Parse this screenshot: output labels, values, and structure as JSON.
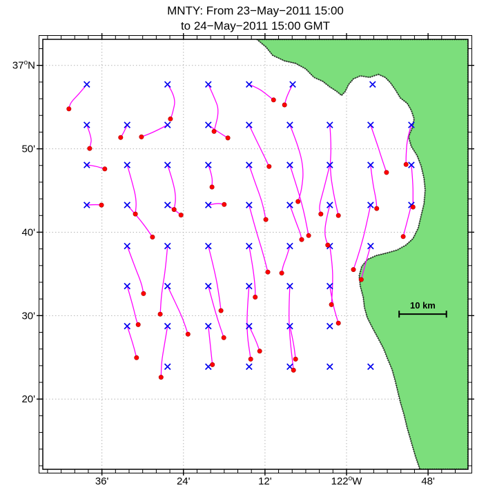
{
  "chart_data": {
    "type": "line",
    "subtype": "lagrangian-trajectory-map",
    "title_line1": "MNTY: From 23−May−2011 15:00",
    "title_line2": "to 24−May−2011 15:00 GMT",
    "axes": {
      "lon_range": [
        -122.745,
        -121.702
      ],
      "lat_range": [
        36.193,
        37.052
      ],
      "x_ticks": [
        {
          "label": "36'",
          "lon": -122.6
        },
        {
          "label": "24'",
          "lon": -122.4
        },
        {
          "label": "12'",
          "lon": -122.2
        },
        {
          "label": "122°W",
          "lon": -122.0
        },
        {
          "label": "48'",
          "lon": -121.8
        }
      ],
      "y_ticks": [
        {
          "label": "37°N",
          "lat": 37.0
        },
        {
          "label": "50'",
          "lat": 36.8333
        },
        {
          "label": "40'",
          "lat": 36.6667
        },
        {
          "label": "30'",
          "lat": 36.5
        },
        {
          "label": "20'",
          "lat": 36.3333
        }
      ],
      "grid": "dotted"
    },
    "scale_bar": {
      "label": "10 km",
      "lon_start": -121.871,
      "lon_end": -121.755,
      "lat": 36.503
    },
    "colors": {
      "land": "#7CDE7C",
      "coast": "#224422",
      "coast_edge": "#222222",
      "grid": "#b3b3b3",
      "trajectory": "#FF00FF",
      "marker": "#0000EE",
      "endpoint": "#FF0000",
      "endpoint_edge": "#AA0000",
      "frame": "#000000"
    },
    "grid_markers": [
      [
        -122.637,
        36.962
      ],
      [
        -122.439,
        36.962
      ],
      [
        -122.339,
        36.962
      ],
      [
        -122.239,
        36.962
      ],
      [
        -122.132,
        36.962
      ],
      [
        -121.936,
        36.962
      ],
      [
        -122.637,
        36.881
      ],
      [
        -122.538,
        36.881
      ],
      [
        -122.439,
        36.881
      ],
      [
        -122.339,
        36.881
      ],
      [
        -122.239,
        36.881
      ],
      [
        -122.139,
        36.881
      ],
      [
        -122.041,
        36.881
      ],
      [
        -121.941,
        36.881
      ],
      [
        -121.841,
        36.881
      ],
      [
        -122.637,
        36.801
      ],
      [
        -122.538,
        36.801
      ],
      [
        -122.439,
        36.801
      ],
      [
        -122.339,
        36.801
      ],
      [
        -122.239,
        36.801
      ],
      [
        -122.139,
        36.801
      ],
      [
        -122.041,
        36.801
      ],
      [
        -121.941,
        36.801
      ],
      [
        -121.841,
        36.801
      ],
      [
        -122.637,
        36.721
      ],
      [
        -122.538,
        36.721
      ],
      [
        -122.439,
        36.721
      ],
      [
        -122.339,
        36.721
      ],
      [
        -122.239,
        36.721
      ],
      [
        -122.139,
        36.721
      ],
      [
        -122.041,
        36.721
      ],
      [
        -121.941,
        36.721
      ],
      [
        -121.841,
        36.721
      ],
      [
        -122.538,
        36.639
      ],
      [
        -122.439,
        36.639
      ],
      [
        -122.339,
        36.639
      ],
      [
        -122.239,
        36.639
      ],
      [
        -122.139,
        36.639
      ],
      [
        -122.041,
        36.639
      ],
      [
        -121.941,
        36.639
      ],
      [
        -122.538,
        36.559
      ],
      [
        -122.439,
        36.559
      ],
      [
        -122.339,
        36.559
      ],
      [
        -122.239,
        36.559
      ],
      [
        -122.139,
        36.559
      ],
      [
        -122.041,
        36.559
      ],
      [
        -122.538,
        36.479
      ],
      [
        -122.439,
        36.479
      ],
      [
        -122.339,
        36.479
      ],
      [
        -122.239,
        36.479
      ],
      [
        -122.139,
        36.479
      ],
      [
        -122.041,
        36.479
      ],
      [
        -122.439,
        36.398
      ],
      [
        -122.339,
        36.398
      ],
      [
        -122.239,
        36.398
      ],
      [
        -122.139,
        36.398
      ],
      [
        -122.041,
        36.398
      ],
      [
        -121.941,
        36.398
      ]
    ],
    "trajectories": [
      [
        [
          -122.637,
          36.962
        ],
        [
          -122.655,
          36.944
        ],
        [
          -122.677,
          36.926
        ],
        [
          -122.681,
          36.913
        ]
      ],
      [
        [
          -122.439,
          36.962
        ],
        [
          -122.418,
          36.937
        ],
        [
          -122.427,
          36.903
        ],
        [
          -122.432,
          36.893
        ]
      ],
      [
        [
          -122.339,
          36.962
        ],
        [
          -122.325,
          36.937
        ],
        [
          -122.312,
          36.91
        ],
        [
          -122.325,
          36.868
        ]
      ],
      [
        [
          -122.239,
          36.962
        ],
        [
          -122.215,
          36.954
        ],
        [
          -122.193,
          36.94
        ],
        [
          -122.179,
          36.931
        ]
      ],
      [
        [
          -122.132,
          36.962
        ],
        [
          -122.146,
          36.94
        ],
        [
          -122.152,
          36.921
        ]
      ],
      [
        [
          -122.637,
          36.881
        ],
        [
          -122.625,
          36.855
        ],
        [
          -122.628,
          36.841
        ],
        [
          -122.63,
          36.834
        ]
      ],
      [
        [
          -122.538,
          36.881
        ],
        [
          -122.545,
          36.868
        ],
        [
          -122.554,
          36.856
        ]
      ],
      [
        [
          -122.439,
          36.881
        ],
        [
          -122.469,
          36.868
        ],
        [
          -122.503,
          36.857
        ]
      ],
      [
        [
          -122.339,
          36.881
        ],
        [
          -122.317,
          36.868
        ],
        [
          -122.291,
          36.855
        ]
      ],
      [
        [
          -122.239,
          36.881
        ],
        [
          -122.224,
          36.855
        ],
        [
          -122.207,
          36.827
        ],
        [
          -122.19,
          36.798
        ]
      ],
      [
        [
          -122.139,
          36.881
        ],
        [
          -122.119,
          36.841
        ],
        [
          -122.105,
          36.793
        ],
        [
          -122.11,
          36.751
        ],
        [
          -122.119,
          36.728
        ]
      ],
      [
        [
          -122.041,
          36.881
        ],
        [
          -122.037,
          36.841
        ],
        [
          -122.041,
          36.793
        ],
        [
          -122.032,
          36.744
        ],
        [
          -122.02,
          36.7
        ]
      ],
      [
        [
          -121.941,
          36.881
        ],
        [
          -121.927,
          36.848
        ],
        [
          -121.916,
          36.82
        ],
        [
          -121.902,
          36.786
        ]
      ],
      [
        [
          -121.841,
          36.881
        ],
        [
          -121.851,
          36.855
        ],
        [
          -121.854,
          36.82
        ],
        [
          -121.854,
          36.802
        ]
      ],
      [
        [
          -122.637,
          36.801
        ],
        [
          -122.616,
          36.799
        ],
        [
          -122.593,
          36.793
        ]
      ],
      [
        [
          -122.538,
          36.801
        ],
        [
          -122.525,
          36.765
        ],
        [
          -122.515,
          36.73
        ],
        [
          -122.518,
          36.703
        ]
      ],
      [
        [
          -122.439,
          36.801
        ],
        [
          -122.427,
          36.772
        ],
        [
          -122.418,
          36.737
        ],
        [
          -122.423,
          36.712
        ]
      ],
      [
        [
          -122.339,
          36.801
        ],
        [
          -122.329,
          36.779
        ],
        [
          -122.33,
          36.757
        ]
      ],
      [
        [
          -122.239,
          36.801
        ],
        [
          -122.224,
          36.765
        ],
        [
          -122.207,
          36.728
        ],
        [
          -122.198,
          36.692
        ]
      ],
      [
        [
          -122.139,
          36.801
        ],
        [
          -122.122,
          36.758
        ],
        [
          -122.105,
          36.71
        ],
        [
          -122.093,
          36.66
        ]
      ],
      [
        [
          -122.041,
          36.801
        ],
        [
          -122.054,
          36.758
        ],
        [
          -122.068,
          36.717
        ],
        [
          -122.063,
          36.703
        ]
      ],
      [
        [
          -121.941,
          36.801
        ],
        [
          -121.936,
          36.765
        ],
        [
          -121.927,
          36.73
        ],
        [
          -121.926,
          36.714
        ]
      ],
      [
        [
          -121.841,
          36.801
        ],
        [
          -121.837,
          36.765
        ],
        [
          -121.837,
          36.73
        ],
        [
          -121.837,
          36.717
        ]
      ],
      [
        [
          -122.637,
          36.721
        ],
        [
          -122.616,
          36.722
        ],
        [
          -122.601,
          36.721
        ]
      ],
      [
        [
          -122.538,
          36.721
        ],
        [
          -122.511,
          36.696
        ],
        [
          -122.491,
          36.675
        ],
        [
          -122.476,
          36.657
        ]
      ],
      [
        [
          -122.439,
          36.721
        ],
        [
          -122.42,
          36.71
        ],
        [
          -122.406,
          36.701
        ]
      ],
      [
        [
          -122.339,
          36.721
        ],
        [
          -122.317,
          36.725
        ],
        [
          -122.3,
          36.722
        ]
      ],
      [
        [
          -122.239,
          36.721
        ],
        [
          -122.224,
          36.675
        ],
        [
          -122.207,
          36.631
        ],
        [
          -122.193,
          36.587
        ]
      ],
      [
        [
          -122.139,
          36.721
        ],
        [
          -122.125,
          36.689
        ],
        [
          -122.113,
          36.664
        ],
        [
          -122.11,
          36.652
        ]
      ],
      [
        [
          -122.041,
          36.721
        ],
        [
          -122.051,
          36.689
        ],
        [
          -122.054,
          36.661
        ],
        [
          -122.046,
          36.641
        ]
      ],
      [
        [
          -121.941,
          36.721
        ],
        [
          -121.953,
          36.675
        ],
        [
          -121.966,
          36.634
        ],
        [
          -121.983,
          36.592
        ]
      ],
      [
        [
          -121.841,
          36.721
        ],
        [
          -121.851,
          36.689
        ],
        [
          -121.861,
          36.658
        ]
      ],
      [
        [
          -122.538,
          36.639
        ],
        [
          -122.52,
          36.599
        ],
        [
          -122.503,
          36.565
        ],
        [
          -122.498,
          36.544
        ]
      ],
      [
        [
          -122.439,
          36.639
        ],
        [
          -122.444,
          36.592
        ],
        [
          -122.454,
          36.544
        ],
        [
          -122.457,
          36.503
        ]
      ],
      [
        [
          -122.339,
          36.639
        ],
        [
          -122.322,
          36.585
        ],
        [
          -122.312,
          36.537
        ],
        [
          -122.308,
          36.51
        ]
      ],
      [
        [
          -122.239,
          36.639
        ],
        [
          -122.23,
          36.599
        ],
        [
          -122.224,
          36.558
        ],
        [
          -122.224,
          36.537
        ]
      ],
      [
        [
          -122.139,
          36.639
        ],
        [
          -122.147,
          36.617
        ],
        [
          -122.156,
          36.599
        ],
        [
          -122.159,
          36.585
        ]
      ],
      [
        [
          -122.041,
          36.639
        ],
        [
          -122.034,
          36.599
        ],
        [
          -122.034,
          36.558
        ],
        [
          -122.037,
          36.522
        ]
      ],
      [
        [
          -121.941,
          36.639
        ],
        [
          -121.953,
          36.606
        ],
        [
          -121.964,
          36.572
        ]
      ],
      [
        [
          -122.538,
          36.559
        ],
        [
          -122.525,
          36.523
        ],
        [
          -122.515,
          36.489
        ],
        [
          -122.511,
          36.482
        ]
      ],
      [
        [
          -122.439,
          36.559
        ],
        [
          -122.418,
          36.523
        ],
        [
          -122.401,
          36.493
        ],
        [
          -122.389,
          36.463
        ]
      ],
      [
        [
          -122.339,
          36.559
        ],
        [
          -122.325,
          36.516
        ],
        [
          -122.312,
          36.482
        ],
        [
          -122.301,
          36.456
        ]
      ],
      [
        [
          -122.239,
          36.559
        ],
        [
          -122.244,
          36.51
        ],
        [
          -122.244,
          36.461
        ],
        [
          -122.235,
          36.413
        ]
      ],
      [
        [
          -122.139,
          36.559
        ],
        [
          -122.142,
          36.51
        ],
        [
          -122.139,
          36.454
        ],
        [
          -122.13,
          36.391
        ]
      ],
      [
        [
          -122.041,
          36.559
        ],
        [
          -122.034,
          36.523
        ],
        [
          -122.02,
          36.485
        ]
      ],
      [
        [
          -122.538,
          36.479
        ],
        [
          -122.525,
          36.447
        ],
        [
          -122.515,
          36.416
        ]
      ],
      [
        [
          -122.439,
          36.479
        ],
        [
          -122.447,
          36.44
        ],
        [
          -122.454,
          36.406
        ],
        [
          -122.455,
          36.377
        ]
      ],
      [
        [
          -122.339,
          36.479
        ],
        [
          -122.334,
          36.44
        ],
        [
          -122.329,
          36.402
        ]
      ],
      [
        [
          -122.239,
          36.479
        ],
        [
          -122.224,
          36.454
        ],
        [
          -122.213,
          36.429
        ]
      ],
      [
        [
          -122.139,
          36.479
        ],
        [
          -122.13,
          36.447
        ],
        [
          -122.125,
          36.413
        ]
      ]
    ],
    "coastline": [
      [
        -122.22,
        37.052
      ],
      [
        -122.198,
        37.037
      ],
      [
        -122.181,
        37.02
      ],
      [
        -122.152,
        37.009
      ],
      [
        -122.125,
        37.004
      ],
      [
        -122.1,
        36.993
      ],
      [
        -122.08,
        36.976
      ],
      [
        -122.058,
        36.968
      ],
      [
        -122.041,
        36.957
      ],
      [
        -122.024,
        36.948
      ],
      [
        -122.012,
        36.94
      ],
      [
        -122.003,
        36.948
      ],
      [
        -121.995,
        36.962
      ],
      [
        -121.983,
        36.973
      ],
      [
        -121.966,
        36.979
      ],
      [
        -121.944,
        36.976
      ],
      [
        -121.922,
        36.982
      ],
      [
        -121.905,
        36.976
      ],
      [
        -121.892,
        36.965
      ],
      [
        -121.88,
        36.951
      ],
      [
        -121.868,
        36.935
      ],
      [
        -121.851,
        36.924
      ],
      [
        -121.841,
        36.91
      ],
      [
        -121.834,
        36.893
      ],
      [
        -121.839,
        36.875
      ],
      [
        -121.848,
        36.857
      ],
      [
        -121.841,
        36.838
      ],
      [
        -121.827,
        36.82
      ],
      [
        -121.817,
        36.799
      ],
      [
        -121.81,
        36.775
      ],
      [
        -121.807,
        36.751
      ],
      [
        -121.81,
        36.723
      ],
      [
        -121.817,
        36.7
      ],
      [
        -121.824,
        36.675
      ],
      [
        -121.837,
        36.654
      ],
      [
        -121.854,
        36.641
      ],
      [
        -121.876,
        36.631
      ],
      [
        -121.902,
        36.625
      ],
      [
        -121.927,
        36.62
      ],
      [
        -121.949,
        36.612
      ],
      [
        -121.963,
        36.598
      ],
      [
        -121.969,
        36.579
      ],
      [
        -121.966,
        36.558
      ],
      [
        -121.959,
        36.537
      ],
      [
        -121.956,
        36.516
      ],
      [
        -121.949,
        36.496
      ],
      [
        -121.936,
        36.475
      ],
      [
        -121.922,
        36.454
      ],
      [
        -121.909,
        36.434
      ],
      [
        -121.899,
        36.413
      ],
      [
        -121.888,
        36.392
      ],
      [
        -121.881,
        36.371
      ],
      [
        -121.875,
        36.351
      ],
      [
        -121.868,
        36.327
      ],
      [
        -121.859,
        36.302
      ],
      [
        -121.851,
        36.275
      ],
      [
        -121.841,
        36.247
      ],
      [
        -121.831,
        36.219
      ],
      [
        -121.82,
        36.193
      ],
      [
        -121.702,
        36.193
      ],
      [
        -121.702,
        37.052
      ]
    ]
  }
}
